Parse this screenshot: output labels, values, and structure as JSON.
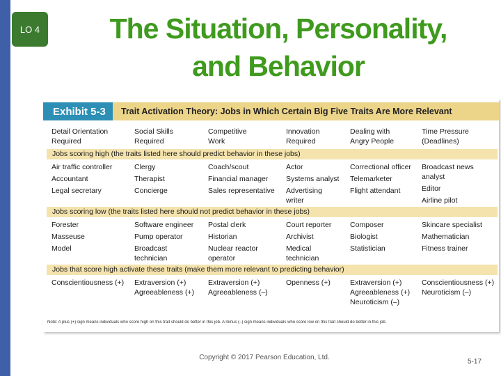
{
  "slide": {
    "lo_badge": "LO 4",
    "title_line1": "The Situation, Personality,",
    "title_line2": "and Behavior",
    "copyright": "Copyright © 2017 Pearson Education, Ltd.",
    "page_number": "5-17"
  },
  "exhibit": {
    "tab_label": "Exhibit 5-3",
    "heading": "Trait Activation Theory: Jobs in Which Certain Big Five Traits Are More Relevant",
    "columns": [
      [
        "Detail Orientation",
        "Required"
      ],
      [
        "Social Skills",
        "Required"
      ],
      [
        "Competitive",
        "Work"
      ],
      [
        "Innovation",
        "Required"
      ],
      [
        "Dealing with",
        "Angry People"
      ],
      [
        "Time Pressure",
        "(Deadlines)"
      ]
    ],
    "bands": {
      "high": "Jobs scoring high (the traits listed here should predict behavior in these jobs)",
      "low": "Jobs scoring low (the traits listed here should not predict behavior in these jobs)",
      "traits": "Jobs that score high activate these traits (make them more relevant to predicting behavior)"
    },
    "high_rows": [
      [
        [
          "Air traffic controller"
        ],
        [
          "Clergy"
        ],
        [
          "Coach/scout"
        ],
        [
          "Actor"
        ],
        [
          "Correctional officer"
        ],
        [
          "Broadcast news",
          "analyst"
        ]
      ],
      [
        [
          "Accountant"
        ],
        [
          "Therapist"
        ],
        [
          "Financial manager"
        ],
        [
          "Systems analyst"
        ],
        [
          "Telemarketer"
        ],
        [
          "Editor"
        ]
      ],
      [
        [
          "Legal secretary"
        ],
        [
          "Concierge"
        ],
        [
          "Sales representative"
        ],
        [
          "Advertising",
          "writer"
        ],
        [
          "Flight attendant"
        ],
        [
          "Airline pilot"
        ]
      ]
    ],
    "low_rows": [
      [
        [
          "Forester"
        ],
        [
          "Software engineer"
        ],
        [
          "Postal clerk"
        ],
        [
          "Court reporter"
        ],
        [
          "Composer"
        ],
        [
          "Skincare specialist"
        ]
      ],
      [
        [
          "Masseuse"
        ],
        [
          "Pump operator"
        ],
        [
          "Historian"
        ],
        [
          "Archivist"
        ],
        [
          "Biologist"
        ],
        [
          "Mathematician"
        ]
      ],
      [
        [
          "Model"
        ],
        [
          "Broadcast",
          "technician"
        ],
        [
          "Nuclear reactor",
          "operator"
        ],
        [
          "Medical",
          "technician"
        ],
        [
          "Statistician"
        ],
        [
          "Fitness trainer"
        ]
      ]
    ],
    "trait_row": [
      [
        "Conscientiousness (+)"
      ],
      [
        "Extraversion (+)",
        "Agreeableness (+)"
      ],
      [
        "Extraversion (+)",
        "Agreeableness (–)"
      ],
      [
        "Openness (+)"
      ],
      [
        "Extraversion (+)",
        "Agreeableness (+)",
        "Neuroticism (–)"
      ],
      [
        "Conscientiousness (+)",
        "Neuroticism (–)"
      ]
    ],
    "note": "Note: A plus (+) sign means individuals who score high on this trait should do better in this job. A minus (–) sign means individuals who score low on this trait should do better in this job."
  }
}
